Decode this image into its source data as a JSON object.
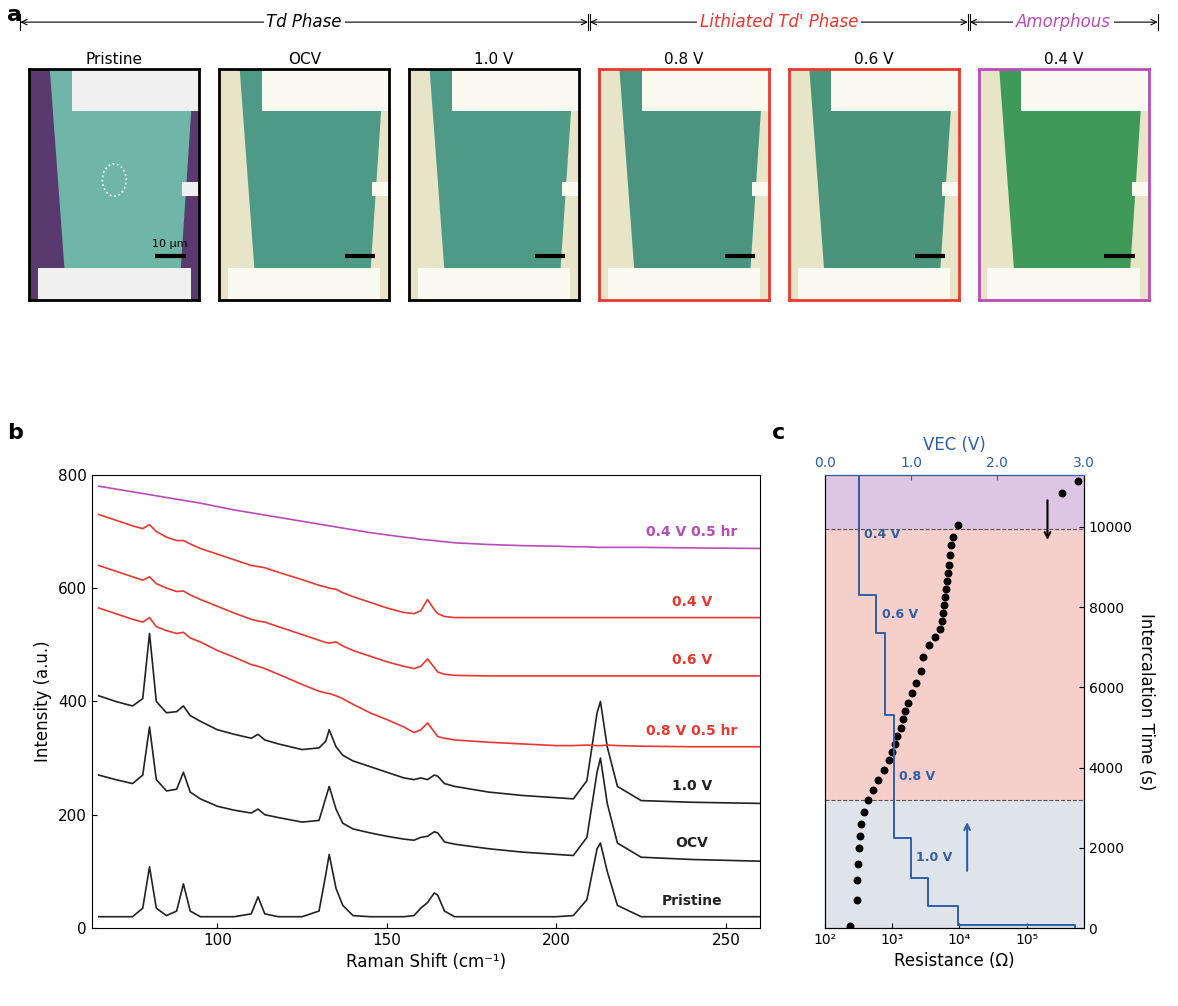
{
  "panel_a": {
    "label": "a",
    "scale_bar": "10 µm",
    "images": [
      {
        "title": "Pristine",
        "border": "#000000",
        "background": "#5a3a6e",
        "flake": "#6fb5a8",
        "electrode": "#f0f0f0"
      },
      {
        "title": "OCV",
        "border": "#000000",
        "background": "#e8e4c8",
        "flake": "#4f9a86",
        "electrode": "#fafaf0"
      },
      {
        "title": "1.0 V",
        "border": "#000000",
        "background": "#e8e4c8",
        "flake": "#4f9a86",
        "electrode": "#fafaf0"
      },
      {
        "title": "0.8 V",
        "border": "#e8382f",
        "background": "#e8e4c8",
        "flake": "#4a9480",
        "electrode": "#fafaf0"
      },
      {
        "title": "0.6 V",
        "border": "#e8382f",
        "background": "#e8e4c8",
        "flake": "#4a947c",
        "electrode": "#fafaf0"
      },
      {
        "title": "0.4 V",
        "border": "#b84cb8",
        "background": "#e8e4c8",
        "flake": "#3f9a5a",
        "electrode": "#fafaf0"
      }
    ],
    "groups": [
      {
        "text": "Td Phase",
        "color": "#000000",
        "members": [
          "Pristine",
          "OCV",
          "1.0 V"
        ]
      },
      {
        "text": "Lithiated Td' Phase",
        "color": "#e8382f",
        "members": [
          "0.8 V",
          "0.6 V"
        ]
      },
      {
        "text": "Amorphous",
        "color": "#b84cb8",
        "members": [
          "0.4 V"
        ]
      }
    ]
  },
  "chart_data": [
    {
      "type": "line",
      "panel_label": "b",
      "x_label": "Raman Shift (cm⁻¹)",
      "y_label": "Intensity (a.u.)",
      "xlim": [
        63,
        260
      ],
      "xticks": [
        100,
        150,
        200,
        250
      ],
      "ylim": [
        0,
        800
      ],
      "yticks": [
        0,
        200,
        400,
        600,
        800
      ],
      "x": [
        65,
        70,
        75,
        78,
        80,
        82,
        85,
        88,
        90,
        92,
        95,
        100,
        105,
        110,
        112,
        114,
        118,
        125,
        130,
        132,
        133,
        135,
        137,
        140,
        145,
        150,
        155,
        158,
        160,
        162,
        164,
        165,
        167,
        170,
        180,
        190,
        200,
        205,
        209,
        212,
        213,
        215,
        218,
        225,
        240,
        260
      ],
      "series": [
        {
          "name": "Pristine",
          "color": "#222222",
          "values": [
            20,
            20,
            20,
            35,
            108,
            35,
            22,
            30,
            78,
            30,
            20,
            20,
            20,
            25,
            55,
            25,
            20,
            20,
            30,
            95,
            130,
            70,
            40,
            22,
            20,
            20,
            20,
            22,
            35,
            45,
            62,
            58,
            30,
            20,
            20,
            20,
            20,
            22,
            50,
            140,
            150,
            100,
            40,
            20,
            20,
            20
          ]
        },
        {
          "name": "OCV",
          "color": "#222222",
          "values": [
            270,
            262,
            255,
            270,
            355,
            262,
            242,
            245,
            275,
            240,
            228,
            215,
            208,
            203,
            210,
            200,
            195,
            187,
            190,
            230,
            250,
            210,
            185,
            175,
            168,
            162,
            157,
            155,
            160,
            162,
            170,
            168,
            152,
            148,
            140,
            134,
            130,
            128,
            160,
            275,
            300,
            220,
            150,
            125,
            121,
            118
          ]
        },
        {
          "name": "1.0 V",
          "color": "#222222",
          "values": [
            410,
            400,
            392,
            405,
            520,
            400,
            380,
            382,
            392,
            375,
            365,
            350,
            342,
            335,
            342,
            332,
            325,
            315,
            318,
            330,
            350,
            320,
            305,
            295,
            285,
            275,
            265,
            262,
            265,
            262,
            270,
            268,
            255,
            250,
            240,
            234,
            230,
            228,
            260,
            380,
            400,
            320,
            250,
            225,
            222,
            220
          ]
        },
        {
          "name": "0.8 V 0.5 hr",
          "color": "#e8382f",
          "values": [
            565,
            555,
            545,
            540,
            548,
            532,
            525,
            520,
            522,
            512,
            505,
            490,
            478,
            465,
            462,
            458,
            448,
            430,
            418,
            415,
            414,
            410,
            405,
            395,
            380,
            368,
            355,
            345,
            350,
            362,
            346,
            338,
            335,
            332,
            328,
            325,
            322,
            322,
            323,
            322,
            322,
            323,
            322,
            321,
            320,
            320
          ]
        },
        {
          "name": "0.6 V",
          "color": "#e8382f",
          "values": [
            640,
            630,
            620,
            614,
            620,
            608,
            600,
            594,
            595,
            588,
            580,
            568,
            556,
            545,
            542,
            540,
            532,
            518,
            508,
            504,
            503,
            505,
            498,
            490,
            480,
            470,
            462,
            458,
            462,
            475,
            460,
            452,
            448,
            446,
            445,
            445,
            445,
            445,
            445,
            445,
            445,
            445,
            445,
            445,
            445,
            445
          ]
        },
        {
          "name": "0.4 V",
          "color": "#e8382f",
          "values": [
            730,
            720,
            710,
            705,
            712,
            700,
            690,
            684,
            684,
            678,
            670,
            660,
            650,
            640,
            638,
            636,
            628,
            615,
            605,
            602,
            600,
            598,
            592,
            585,
            575,
            565,
            557,
            555,
            560,
            580,
            562,
            555,
            550,
            548,
            548,
            548,
            548,
            548,
            548,
            548,
            548,
            548,
            548,
            548,
            548,
            548
          ]
        },
        {
          "name": "0.4 V 0.5 hr",
          "color": "#b84cb8",
          "values": [
            780,
            775,
            770,
            767,
            765,
            763,
            760,
            757,
            755,
            753,
            750,
            744,
            738,
            733,
            731,
            729,
            725,
            718,
            713,
            711,
            710,
            708,
            706,
            703,
            698,
            694,
            690,
            688,
            686,
            685,
            684,
            683,
            682,
            680,
            677,
            675,
            674,
            673,
            673,
            672,
            672,
            672,
            672,
            672,
            671,
            670
          ]
        }
      ]
    },
    {
      "type": "scatter",
      "panel_label": "c",
      "x_label": "Resistance (Ω)",
      "y_label": "Intercalation Time (s)",
      "log": "x",
      "xlim": [
        100,
        700000
      ],
      "xticks": [
        {
          "value": 100,
          "label": "10²"
        },
        {
          "value": 1000,
          "label": "10³"
        },
        {
          "value": 10000,
          "label": "10⁴"
        },
        {
          "value": 100000,
          "label": "10⁵"
        }
      ],
      "ylim": [
        0,
        11300
      ],
      "yticks": [
        0,
        2000,
        4000,
        6000,
        8000,
        10000
      ],
      "x2_label": "VEC (V)",
      "x2lim": [
        0.0,
        3.0
      ],
      "x2ticks": [
        {
          "value": 0,
          "label": "0.0"
        },
        {
          "value": 1,
          "label": "1.0"
        },
        {
          "value": 2,
          "label": "2.0"
        },
        {
          "value": 3,
          "label": "3.0"
        }
      ],
      "color": "#000000",
      "time": [
        60,
        700,
        1200,
        1600,
        2000,
        2300,
        2600,
        2900,
        3200,
        3450,
        3700,
        3950,
        4200,
        4400,
        4600,
        4800,
        5000,
        5200,
        5400,
        5600,
        5850,
        6100,
        6400,
        6750,
        7050,
        7250,
        7450,
        7650,
        7850,
        8050,
        8250,
        8450,
        8650,
        8850,
        9050,
        9300,
        9550,
        9750,
        10050,
        10850,
        11150
      ],
      "resistance": [
        240,
        300,
        300,
        310,
        320,
        330,
        350,
        390,
        440,
        520,
        620,
        760,
        900,
        1000,
        1100,
        1200,
        1350,
        1450,
        1550,
        1700,
        1950,
        2300,
        2700,
        2900,
        3600,
        4300,
        5200,
        5600,
        5800,
        6000,
        6200,
        6400,
        6600,
        6800,
        7000,
        7300,
        7600,
        8000,
        9500,
        330000,
        570000
      ],
      "voltage_steps": {
        "color": "#2e5fa8",
        "time": [
          0,
          80,
          550,
          1250,
          2250,
          5300,
          7350,
          8300,
          11300
        ],
        "voltage": [
          2.9,
          1.55,
          1.2,
          1.0,
          0.8,
          0.7,
          0.6,
          0.4,
          0.4
        ]
      },
      "step_labels": [
        {
          "voltage": 1.0,
          "text": "1.0 V"
        },
        {
          "voltage": 0.8,
          "text": "0.8 V"
        },
        {
          "voltage": 0.6,
          "text": "0.6 V"
        },
        {
          "voltage": 0.4,
          "text": "0.4 V"
        }
      ],
      "regions": [
        {
          "from": 0,
          "to": 3200,
          "color": "#dfe3ea"
        },
        {
          "from": 3200,
          "to": 9950,
          "color": "#f6cfca"
        },
        {
          "from": 9950,
          "to": 11300,
          "color": "#dcc6e4"
        }
      ]
    }
  ]
}
